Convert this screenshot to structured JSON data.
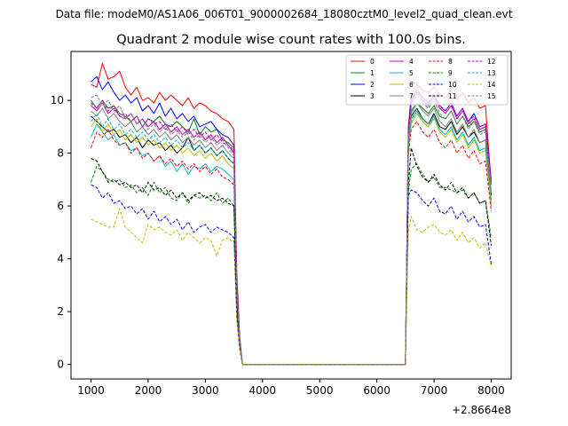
{
  "suptitle": "Data file: modeM0/AS1A06_006T01_9000002684_18080cztM0_level2_quad_clean.evt",
  "chart_data": {
    "type": "line",
    "title": "Quadrant 2 module wise count rates with 100.0s bins.",
    "xlabel": "",
    "ylabel": "",
    "x_offset_label": "+2.8664e8",
    "xlim": [
      650,
      8350
    ],
    "ylim": [
      -0.55,
      11.85
    ],
    "x_ticks": [
      1000,
      2000,
      3000,
      4000,
      5000,
      6000,
      7000,
      8000
    ],
    "y_ticks": [
      0,
      2,
      4,
      6,
      8,
      10
    ],
    "legend_position": "top-right",
    "grid": false,
    "x": [
      1000,
      1100,
      1200,
      1300,
      1400,
      1500,
      1600,
      1700,
      1800,
      1900,
      2000,
      2100,
      2200,
      2300,
      2400,
      2500,
      2600,
      2700,
      2800,
      2900,
      3000,
      3100,
      3200,
      3300,
      3400,
      3500,
      3550,
      3600,
      3650,
      3700,
      6500,
      6550,
      6600,
      6700,
      6800,
      6900,
      7000,
      7100,
      7200,
      7300,
      7400,
      7500,
      7600,
      7700,
      7800,
      7900,
      8000
    ],
    "series": [
      {
        "name": "0",
        "color": "#ff0000",
        "dash": "solid",
        "values": [
          10.6,
          10.5,
          11.4,
          10.8,
          10.9,
          11.1,
          10.5,
          10.2,
          10.5,
          10.0,
          10.1,
          9.9,
          10.3,
          10.0,
          10.2,
          10.0,
          9.8,
          10.1,
          9.7,
          9.9,
          9.8,
          9.6,
          9.5,
          9.3,
          9.2,
          8.9,
          3.5,
          1.1,
          0.0,
          0.0,
          0.0,
          9.0,
          10.2,
          10.6,
          10.4,
          10.3,
          10.5,
          10.2,
          10.1,
          10.4,
          10.0,
          10.3,
          9.9,
          10.1,
          9.7,
          9.8,
          6.8
        ]
      },
      {
        "name": "1",
        "color": "#008000",
        "dash": "solid",
        "values": [
          10.0,
          9.7,
          10.0,
          9.7,
          9.8,
          9.5,
          9.4,
          9.2,
          9.4,
          9.0,
          9.3,
          9.2,
          9.4,
          9.1,
          9.0,
          9.2,
          9.0,
          8.8,
          9.3,
          8.7,
          9.0,
          8.8,
          8.9,
          8.5,
          8.4,
          8.2,
          3.0,
          0.9,
          0.0,
          0.0,
          0.0,
          8.5,
          9.6,
          9.9,
          9.7,
          9.5,
          9.8,
          9.4,
          9.3,
          9.6,
          9.1,
          9.4,
          9.0,
          9.2,
          8.8,
          8.9,
          6.2
        ]
      },
      {
        "name": "2",
        "color": "#0000ff",
        "dash": "solid",
        "values": [
          10.7,
          10.9,
          10.4,
          10.7,
          10.3,
          10.0,
          10.2,
          9.9,
          10.1,
          9.6,
          9.8,
          9.5,
          9.9,
          9.4,
          9.7,
          9.3,
          9.5,
          9.2,
          9.4,
          9.0,
          9.1,
          9.2,
          8.9,
          8.7,
          8.6,
          8.3,
          3.2,
          1.0,
          0.0,
          0.0,
          0.0,
          8.8,
          10.0,
          10.4,
          10.1,
          9.9,
          10.2,
          9.8,
          9.6,
          9.9,
          9.4,
          9.7,
          9.2,
          9.5,
          9.0,
          9.1,
          7.0
        ]
      },
      {
        "name": "3",
        "color": "#000000",
        "dash": "solid",
        "values": [
          9.4,
          9.2,
          9.0,
          8.8,
          8.9,
          8.6,
          8.7,
          8.4,
          8.6,
          8.2,
          8.5,
          8.3,
          8.4,
          8.1,
          8.3,
          8.0,
          8.2,
          8.6,
          8.1,
          8.3,
          8.0,
          8.2,
          7.9,
          8.1,
          7.8,
          7.6,
          2.8,
          0.9,
          0.0,
          0.0,
          0.0,
          8.3,
          9.4,
          9.7,
          9.3,
          9.1,
          9.5,
          9.0,
          8.9,
          9.2,
          8.7,
          9.0,
          8.6,
          8.8,
          8.4,
          8.5,
          6.4
        ]
      },
      {
        "name": "4",
        "color": "#bf00bf",
        "dash": "solid",
        "values": [
          9.8,
          9.6,
          9.9,
          9.5,
          9.7,
          9.4,
          9.3,
          9.5,
          9.1,
          9.3,
          9.0,
          9.2,
          8.9,
          9.1,
          8.8,
          9.0,
          8.7,
          8.9,
          8.6,
          8.8,
          8.5,
          8.7,
          8.4,
          8.6,
          8.3,
          8.0,
          3.0,
          0.9,
          0.0,
          0.0,
          0.0,
          8.6,
          9.8,
          10.3,
          10.0,
          9.8,
          10.1,
          9.7,
          9.5,
          9.8,
          9.3,
          9.6,
          9.1,
          9.3,
          8.9,
          9.0,
          6.9
        ]
      },
      {
        "name": "5",
        "color": "#00bfbf",
        "dash": "solid",
        "values": [
          8.6,
          9.1,
          8.8,
          8.5,
          8.7,
          8.3,
          8.4,
          8.1,
          8.2,
          7.9,
          8.0,
          7.7,
          7.9,
          7.5,
          7.7,
          7.3,
          7.6,
          7.2,
          7.5,
          7.4,
          7.6,
          7.3,
          7.5,
          7.4,
          7.2,
          7.0,
          2.6,
          0.8,
          0.0,
          0.0,
          0.0,
          8.2,
          9.3,
          9.6,
          9.2,
          9.0,
          9.4,
          8.9,
          8.7,
          9.0,
          8.5,
          8.8,
          8.3,
          8.6,
          8.1,
          8.2,
          6.0
        ]
      },
      {
        "name": "6",
        "color": "#bfbf00",
        "dash": "solid",
        "values": [
          9.0,
          9.3,
          8.8,
          9.1,
          8.7,
          8.9,
          8.5,
          8.7,
          8.4,
          8.6,
          8.3,
          8.5,
          8.2,
          8.4,
          8.1,
          8.3,
          8.0,
          8.2,
          7.9,
          8.1,
          7.8,
          8.0,
          7.7,
          7.9,
          7.6,
          7.4,
          2.7,
          0.8,
          0.0,
          0.0,
          0.0,
          8.0,
          9.1,
          9.5,
          9.2,
          9.0,
          9.3,
          8.8,
          8.6,
          8.9,
          8.4,
          8.7,
          8.2,
          8.5,
          8.0,
          8.1,
          6.1
        ]
      },
      {
        "name": "7",
        "color": "#808080",
        "dash": "solid",
        "values": [
          9.6,
          9.4,
          9.7,
          9.3,
          9.5,
          9.2,
          9.0,
          9.2,
          8.8,
          9.0,
          8.7,
          8.9,
          8.6,
          8.8,
          8.5,
          8.7,
          8.4,
          8.6,
          8.3,
          8.5,
          8.2,
          8.4,
          8.1,
          8.3,
          8.0,
          7.8,
          2.9,
          0.9,
          0.0,
          0.0,
          0.0,
          8.4,
          9.5,
          9.9,
          9.6,
          9.4,
          9.7,
          9.2,
          9.0,
          9.3,
          8.8,
          9.1,
          8.6,
          8.9,
          8.4,
          8.5,
          6.5
        ]
      },
      {
        "name": "8",
        "color": "#ff0000",
        "dash": "dashed",
        "values": [
          8.2,
          8.8,
          8.6,
          8.9,
          8.5,
          8.3,
          8.4,
          8.0,
          8.2,
          7.8,
          8.0,
          7.7,
          7.9,
          7.6,
          7.8,
          7.5,
          7.7,
          7.4,
          7.6,
          7.3,
          7.5,
          7.2,
          7.4,
          7.1,
          7.0,
          6.8,
          2.5,
          0.8,
          0.0,
          0.0,
          0.0,
          7.9,
          8.9,
          9.2,
          8.8,
          8.6,
          8.9,
          8.4,
          8.2,
          8.5,
          8.0,
          8.3,
          7.8,
          8.1,
          7.6,
          7.7,
          5.8
        ]
      },
      {
        "name": "9",
        "color": "#008000",
        "dash": "dashed",
        "values": [
          6.9,
          7.5,
          7.3,
          7.0,
          6.9,
          7.0,
          6.7,
          6.8,
          6.5,
          6.7,
          6.4,
          6.9,
          6.5,
          6.7,
          6.3,
          6.2,
          6.5,
          6.1,
          6.4,
          6.3,
          6.4,
          6.2,
          6.5,
          6.1,
          6.3,
          6.0,
          2.2,
          0.7,
          0.0,
          0.0,
          0.0,
          6.5,
          7.4,
          7.6,
          7.2,
          6.9,
          7.1,
          6.7,
          6.7,
          6.6,
          6.5,
          6.6,
          6.3,
          6.5,
          6.1,
          6.2,
          4.8
        ]
      },
      {
        "name": "10",
        "color": "#0000ff",
        "dash": "dashed",
        "values": [
          6.8,
          6.7,
          6.3,
          6.5,
          6.1,
          6.2,
          5.9,
          6.0,
          5.7,
          5.9,
          5.5,
          5.8,
          5.4,
          5.6,
          5.3,
          5.5,
          5.1,
          5.4,
          5.0,
          5.2,
          5.3,
          5.0,
          5.2,
          5.1,
          5.0,
          4.8,
          1.8,
          0.6,
          0.0,
          0.0,
          0.0,
          6.4,
          6.6,
          6.5,
          6.2,
          6.0,
          6.3,
          5.8,
          5.7,
          6.0,
          5.5,
          5.8,
          5.4,
          5.6,
          5.2,
          5.3,
          3.8
        ]
      },
      {
        "name": "11",
        "color": "#000000",
        "dash": "dashed",
        "values": [
          7.8,
          7.7,
          7.3,
          6.9,
          7.0,
          6.8,
          6.9,
          6.7,
          6.8,
          6.5,
          6.9,
          6.6,
          6.7,
          6.4,
          6.6,
          6.3,
          6.5,
          6.2,
          6.4,
          6.5,
          6.3,
          6.4,
          6.2,
          6.3,
          6.1,
          6.0,
          2.2,
          0.7,
          0.0,
          0.0,
          0.0,
          6.8,
          8.2,
          7.5,
          7.1,
          6.9,
          7.2,
          6.8,
          6.6,
          6.9,
          6.5,
          6.7,
          6.3,
          6.5,
          6.1,
          6.2,
          4.5
        ]
      },
      {
        "name": "12",
        "color": "#bf00bf",
        "dash": "dashed",
        "values": [
          9.9,
          9.7,
          10.0,
          9.6,
          9.8,
          9.4,
          9.5,
          9.2,
          9.4,
          9.0,
          9.3,
          9.1,
          9.2,
          8.9,
          9.1,
          8.8,
          9.0,
          8.7,
          8.9,
          8.6,
          8.8,
          8.5,
          8.7,
          8.4,
          8.3,
          8.1,
          3.0,
          0.9,
          0.0,
          0.0,
          0.0,
          8.7,
          9.9,
          10.4,
          10.1,
          9.9,
          10.2,
          9.8,
          9.6,
          9.9,
          9.4,
          9.7,
          9.2,
          9.4,
          9.0,
          9.1,
          7.0
        ]
      },
      {
        "name": "13",
        "color": "#00bfbf",
        "dash": "dashed",
        "values": [
          9.2,
          9.5,
          9.0,
          9.3,
          8.9,
          9.1,
          8.7,
          8.9,
          8.6,
          8.8,
          8.5,
          8.7,
          8.4,
          8.6,
          8.3,
          8.5,
          8.2,
          8.4,
          8.1,
          8.3,
          8.0,
          8.2,
          7.9,
          8.1,
          7.8,
          7.6,
          2.8,
          0.9,
          0.0,
          0.0,
          0.0,
          8.1,
          9.2,
          9.6,
          9.3,
          9.1,
          9.4,
          8.9,
          8.7,
          9.0,
          8.5,
          8.8,
          8.3,
          8.6,
          8.1,
          8.2,
          6.3
        ]
      },
      {
        "name": "14",
        "color": "#bfbf00",
        "dash": "dashed",
        "values": [
          5.5,
          5.4,
          5.3,
          5.2,
          5.2,
          5.9,
          5.2,
          5.0,
          4.8,
          4.6,
          5.3,
          5.1,
          5.2,
          5.0,
          4.9,
          5.1,
          4.7,
          5.0,
          4.8,
          4.6,
          4.8,
          4.7,
          4.1,
          4.7,
          4.8,
          4.6,
          1.7,
          0.6,
          0.0,
          0.0,
          0.0,
          5.0,
          5.6,
          5.1,
          5.0,
          5.2,
          5.3,
          5.0,
          4.9,
          5.1,
          4.7,
          5.0,
          4.6,
          4.8,
          4.4,
          4.6,
          3.7
        ]
      },
      {
        "name": "15",
        "color": "#808080",
        "dash": "dashed",
        "values": [
          10.1,
          10.2,
          9.8,
          10.0,
          9.6,
          9.8,
          9.3,
          9.5,
          9.1,
          9.3,
          8.9,
          9.1,
          8.8,
          9.0,
          8.7,
          8.9,
          8.6,
          8.8,
          8.5,
          8.7,
          8.4,
          8.6,
          8.3,
          8.5,
          8.2,
          7.9,
          2.9,
          0.9,
          0.0,
          0.0,
          0.0,
          8.6,
          9.8,
          10.2,
          9.9,
          9.7,
          10.0,
          9.5,
          9.3,
          9.6,
          9.1,
          9.4,
          8.9,
          9.2,
          8.7,
          8.8,
          6.7
        ]
      }
    ]
  }
}
